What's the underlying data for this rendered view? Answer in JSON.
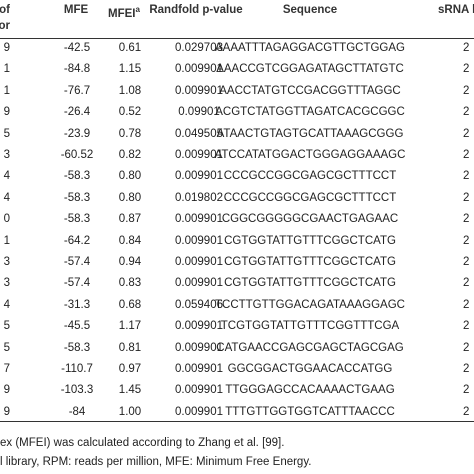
{
  "table": {
    "header": [
      {
        "lines": [
          "th of",
          "recursor"
        ]
      },
      {
        "lines": [
          "MFE"
        ]
      },
      {
        "lines": [
          "MFEI"
        ],
        "sup": "a"
      },
      {
        "lines": [
          "Randfold p-value"
        ]
      },
      {
        "lines": [
          "Sequence"
        ]
      },
      {
        "lines": [
          "sRNA l"
        ]
      }
    ],
    "rows": [
      [
        "9",
        "-42.5",
        "0.61",
        "0.029703",
        "AAAATTTAGAGGACGTTGCTGGAG",
        "2"
      ],
      [
        "1",
        "-84.8",
        "1.15",
        "0.009901",
        "AAACCGTCGGAGATAGCTTATGTC",
        "2"
      ],
      [
        "1",
        "-76.7",
        "1.08",
        "0.009901",
        "AACCTATGTCCGACGGTTTAGGC",
        "2"
      ],
      [
        "9",
        "-26.4",
        "0.52",
        "0.09901",
        "ACGTCTATGGTTAGATCACGCGGC",
        "2"
      ],
      [
        "5",
        "-23.9",
        "0.78",
        "0.049505",
        "ATAACTGTAGTGCATTAAAGCGGG",
        "2"
      ],
      [
        "3",
        "-60.52",
        "0.82",
        "0.009901",
        "ATCCATATGGACTGGGAGGAAAGC",
        "2"
      ],
      [
        "4",
        "-58.3",
        "0.80",
        "0.009901",
        "CCCGCCGGCGAGCGCTTTCCT",
        "2"
      ],
      [
        "4",
        "-58.3",
        "0.80",
        "0.019802",
        "CCCGCCGGCGAGCGCTTTCCT",
        "2"
      ],
      [
        "0",
        "-58.3",
        "0.87",
        "0.009901",
        "CGGCGGGGGCGAACTGAGAAC",
        "2"
      ],
      [
        "1",
        "-64.2",
        "0.84",
        "0.009901",
        "CGTGGTATTGTTTCGGCTCATG",
        "2"
      ],
      [
        "3",
        "-57.4",
        "0.94",
        "0.009901",
        "CGTGGTATTGTTTCGGCTCATG",
        "2"
      ],
      [
        "3",
        "-57.4",
        "0.83",
        "0.009901",
        "CGTGGTATTGTTTCGGCTCATG",
        "2"
      ],
      [
        "4",
        "-31.3",
        "0.68",
        "0.059406",
        "TCCTTGTTGGACAGATAAAGGAGC",
        "2"
      ],
      [
        "5",
        "-45.5",
        "1.17",
        "0.009901",
        "TCGTGGTATTGTTTCGGTTTCGA",
        "2"
      ],
      [
        "5",
        "-58.3",
        "0.81",
        "0.009901",
        "CATGAACCGAGCGAGCTAGCGAG",
        "2"
      ],
      [
        "7",
        "-110.7",
        "0.97",
        "0.009901",
        "GGCGGACTGGAACACCATGG",
        "2"
      ],
      [
        "9",
        "-103.3",
        "1.45",
        "0.009901",
        "TTGGGAGCCACAAAACTGAAG",
        "2"
      ],
      [
        "9",
        "-84",
        "1.00",
        "0.009901",
        "TTTGTTGGTGGTCATTTAACCC",
        "2"
      ]
    ],
    "footnotes": [
      "ex (MFEI) was calculated according to Zhang et al. [99].",
      "l library, RPM: reads per million, MFE: Minimum Free Energy."
    ]
  }
}
